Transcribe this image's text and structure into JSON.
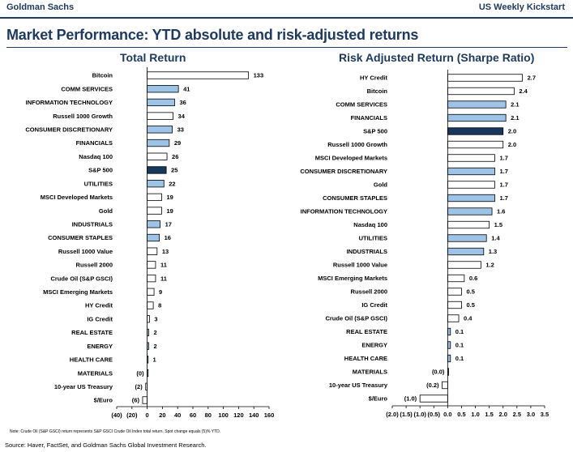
{
  "header": {
    "brand": "Goldman Sachs",
    "report": "US Weekly Kickstart"
  },
  "title": "Market Performance: YTD absolute and risk-adjusted returns",
  "footer": {
    "note": "Note: Crude Oil (S&P GSCI) return represents S&P GSCI Crude Oil Index total return. Spot change equals (5)% YTD.",
    "source": "Source: Haver, FactSet, and Goldman Sachs Global Investment Research."
  },
  "colors": {
    "navy": "#1f3a60",
    "dark_bar": "#17375e",
    "light_bar": "#9dc3e6",
    "white_bar": "#ffffff"
  },
  "chart_data": [
    {
      "type": "bar",
      "orientation": "horizontal",
      "title": "Total Return",
      "xlim": [
        -40,
        160
      ],
      "xticks": [
        -40,
        -20,
        0,
        20,
        40,
        60,
        80,
        100,
        120,
        140,
        160
      ],
      "xtick_labels": [
        "(40)",
        "(20)",
        "0",
        "20",
        "40",
        "60",
        "80",
        "100",
        "120",
        "140",
        "160"
      ],
      "grid": false,
      "categories": [
        "Bitcoin",
        "COMM SERVICES",
        "INFORMATION TECHNOLOGY",
        "Russell 1000 Growth",
        "CONSUMER DISCRETIONARY",
        "FINANCIALS",
        "Nasdaq 100",
        "S&P 500",
        "UTILITIES",
        "MSCI Developed Markets",
        "Gold",
        "INDUSTRIALS",
        "CONSUMER STAPLES",
        "Russell 1000 Value",
        "Russell 2000",
        "Crude Oil (S&P GSCI)",
        "MSCI Emerging Markets",
        "HY Credit",
        "IG Credit",
        "REAL ESTATE",
        "ENERGY",
        "HEALTH CARE",
        "MATERIALS",
        "10-year US Treasury",
        "$/Euro"
      ],
      "values": [
        133,
        41,
        36,
        34,
        33,
        29,
        26,
        25,
        22,
        19,
        19,
        17,
        16,
        13,
        11,
        11,
        9,
        8,
        3,
        2,
        2,
        1,
        0,
        -2,
        -6
      ],
      "value_labels": [
        "133",
        "41",
        "36",
        "34",
        "33",
        "29",
        "26",
        "25",
        "22",
        "19",
        "19",
        "17",
        "16",
        "13",
        "11",
        "11",
        "9",
        "8",
        "3",
        "2",
        "2",
        "1",
        "(0)",
        "(2)",
        "(6)"
      ],
      "fills": [
        "white",
        "light",
        "light",
        "white",
        "light",
        "light",
        "white",
        "dark",
        "light",
        "white",
        "white",
        "light",
        "light",
        "white",
        "white",
        "white",
        "white",
        "white",
        "white",
        "light",
        "light",
        "light",
        "light",
        "white",
        "white"
      ]
    },
    {
      "type": "bar",
      "orientation": "horizontal",
      "title": "Risk Adjusted Return (Sharpe Ratio)",
      "xlim": [
        -2.0,
        3.5
      ],
      "xticks": [
        -2.0,
        -1.5,
        -1.0,
        -0.5,
        0.0,
        0.5,
        1.0,
        1.5,
        2.0,
        2.5,
        3.0,
        3.5
      ],
      "xtick_labels": [
        "(2.0)",
        "(1.5)",
        "(1.0)",
        "(0.5)",
        "0.0",
        "0.5",
        "1.0",
        "1.5",
        "2.0",
        "2.5",
        "3.0",
        "3.5"
      ],
      "grid": false,
      "categories": [
        "HY Credit",
        "Bitcoin",
        "COMM SERVICES",
        "FINANCIALS",
        "S&P 500",
        "Russell 1000 Growth",
        "MSCI Developed Markets",
        "CONSUMER DISCRETIONARY",
        "Gold",
        "CONSUMER STAPLES",
        "INFORMATION TECHNOLOGY",
        "Nasdaq 100",
        "UTILITIES",
        "INDUSTRIALS",
        "Russell 1000 Value",
        "MSCI Emerging Markets",
        "Russell 2000",
        "IG Credit",
        "Crude Oil (S&P GSCI)",
        "REAL ESTATE",
        "ENERGY",
        "HEALTH CARE",
        "MATERIALS",
        "10-year US Treasury",
        "$/Euro"
      ],
      "values": [
        2.7,
        2.4,
        2.1,
        2.1,
        2.0,
        2.0,
        1.7,
        1.7,
        1.7,
        1.7,
        1.6,
        1.5,
        1.4,
        1.3,
        1.2,
        0.6,
        0.5,
        0.5,
        0.4,
        0.1,
        0.1,
        0.1,
        0.0,
        -0.2,
        -1.0
      ],
      "value_labels": [
        "2.7",
        "2.4",
        "2.1",
        "2.1",
        "2.0",
        "2.0",
        "1.7",
        "1.7",
        "1.7",
        "1.7",
        "1.6",
        "1.5",
        "1.4",
        "1.3",
        "1.2",
        "0.6",
        "0.5",
        "0.5",
        "0.4",
        "0.1",
        "0.1",
        "0.1",
        "(0.0)",
        "(0.2)",
        "(1.0)"
      ],
      "fills": [
        "white",
        "white",
        "light",
        "light",
        "dark",
        "white",
        "white",
        "light",
        "white",
        "light",
        "light",
        "white",
        "light",
        "light",
        "white",
        "white",
        "white",
        "white",
        "white",
        "light",
        "light",
        "light",
        "light",
        "white",
        "white"
      ]
    }
  ]
}
